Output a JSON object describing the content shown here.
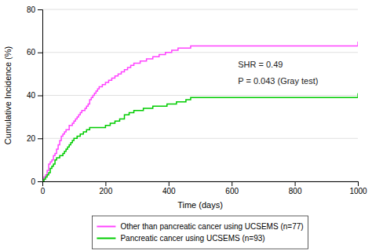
{
  "chart_data": {
    "type": "step",
    "title": "",
    "xlabel": "Time (days)",
    "ylabel": "Cumulative Incidence (%)",
    "xlim": [
      0,
      1000
    ],
    "ylim": [
      0,
      80
    ],
    "xticks": [
      0,
      200,
      400,
      600,
      800,
      1000
    ],
    "yticks": [
      0,
      20,
      40,
      60,
      80
    ],
    "grid": true,
    "legend": "bottom",
    "annotations": [
      {
        "text": "SHR = 0.49",
        "x": 620,
        "y": 52
      },
      {
        "text": "P = 0.043 (Gray test)",
        "x": 620,
        "y": 49
      }
    ],
    "series": [
      {
        "name": "Other than pancreatic cancer using UCSEMS (n=77)",
        "color": "#FF44FF",
        "x": [
          0,
          5,
          10,
          15,
          20,
          25,
          30,
          35,
          40,
          45,
          50,
          55,
          60,
          65,
          70,
          75,
          80,
          85,
          90,
          95,
          100,
          105,
          110,
          115,
          120,
          125,
          130,
          135,
          140,
          145,
          150,
          155,
          160,
          165,
          170,
          175,
          180,
          185,
          190,
          195,
          200,
          210,
          220,
          230,
          240,
          250,
          260,
          270,
          280,
          290,
          300,
          310,
          320,
          330,
          340,
          350,
          360,
          370,
          380,
          390,
          400,
          410,
          420,
          430,
          440,
          450,
          460,
          470,
          480,
          490,
          500,
          600,
          700,
          800,
          900,
          980,
          1000
        ],
        "values": [
          0,
          2,
          3,
          5,
          8,
          9,
          10,
          12,
          13,
          15,
          17,
          19,
          21,
          22,
          23,
          24,
          24,
          26,
          26,
          27,
          28,
          29,
          30,
          31,
          32,
          33,
          33,
          34,
          35,
          36,
          38,
          39,
          40,
          41,
          42,
          43,
          44,
          44,
          45,
          45,
          46,
          47,
          48,
          49,
          50,
          51,
          52,
          53,
          54,
          55,
          55,
          56,
          56,
          57,
          57,
          58,
          58,
          59,
          59,
          60,
          60,
          61,
          61,
          62,
          62,
          62,
          62,
          63,
          63,
          63,
          63,
          63,
          63,
          63,
          63,
          63,
          65
        ]
      },
      {
        "name": "Pancreatic cancer using UCSEMS (n=93)",
        "color": "#00CC00",
        "x": [
          0,
          5,
          10,
          15,
          20,
          25,
          30,
          35,
          40,
          45,
          50,
          55,
          60,
          65,
          70,
          75,
          80,
          85,
          90,
          95,
          100,
          110,
          120,
          130,
          140,
          150,
          160,
          170,
          180,
          190,
          200,
          215,
          230,
          245,
          260,
          275,
          290,
          305,
          320,
          335,
          350,
          365,
          380,
          395,
          410,
          425,
          440,
          455,
          470,
          485,
          500,
          600,
          700,
          800,
          900,
          1000
        ],
        "values": [
          0,
          1,
          2,
          3,
          4,
          6,
          7,
          8,
          10,
          11,
          11,
          12,
          12,
          13,
          14,
          15,
          16,
          17,
          18,
          19,
          20,
          21,
          22,
          23,
          24,
          25,
          25,
          25,
          25,
          25,
          26,
          27,
          28,
          29,
          31,
          32,
          33,
          33,
          34,
          34,
          35,
          35,
          35,
          36,
          36,
          37,
          37,
          38,
          39,
          39,
          39,
          39,
          39,
          39,
          39,
          41
        ]
      }
    ]
  }
}
